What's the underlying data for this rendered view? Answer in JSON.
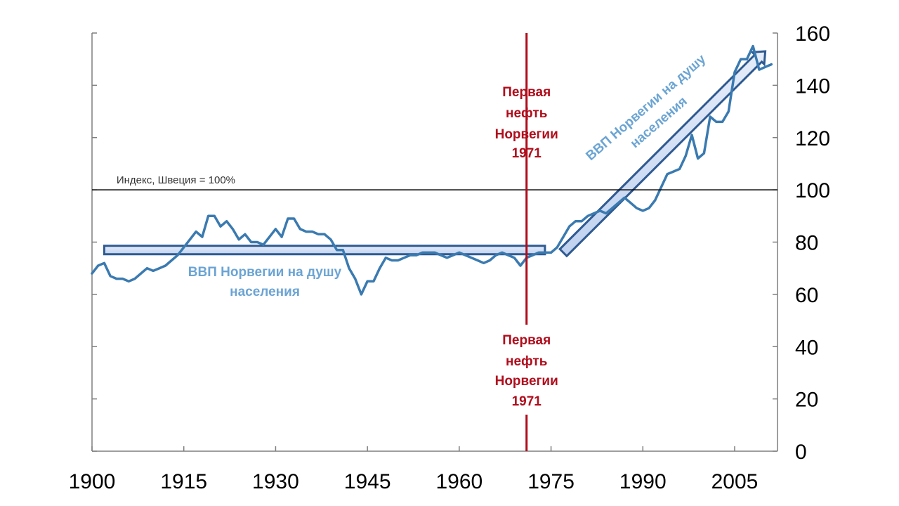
{
  "chart_data": {
    "type": "line",
    "title": "",
    "xlabel": "",
    "ylabel": "",
    "xlim": [
      1900,
      2012
    ],
    "ylim": [
      0,
      160
    ],
    "x_ticks": [
      "1900",
      "1915",
      "1930",
      "1945",
      "1960",
      "1975",
      "1990",
      "2005"
    ],
    "y_ticks": [
      "0",
      "20",
      "40",
      "60",
      "80",
      "100",
      "120",
      "140",
      "160"
    ],
    "grid": false,
    "series": [
      {
        "name": "ВВП Норвегии на душу населения",
        "color": "#3a7ab0",
        "x": [
          1900,
          1901,
          1902,
          1903,
          1904,
          1905,
          1906,
          1907,
          1908,
          1909,
          1910,
          1911,
          1912,
          1913,
          1914,
          1915,
          1916,
          1917,
          1918,
          1919,
          1920,
          1921,
          1922,
          1923,
          1924,
          1925,
          1926,
          1927,
          1928,
          1929,
          1930,
          1931,
          1932,
          1933,
          1934,
          1935,
          1936,
          1937,
          1938,
          1939,
          1940,
          1941,
          1942,
          1943,
          1944,
          1945,
          1946,
          1947,
          1948,
          1949,
          1950,
          1951,
          1952,
          1953,
          1954,
          1955,
          1956,
          1957,
          1958,
          1959,
          1960,
          1961,
          1962,
          1963,
          1964,
          1965,
          1966,
          1967,
          1968,
          1969,
          1970,
          1971,
          1972,
          1973,
          1974,
          1975,
          1976,
          1977,
          1978,
          1979,
          1980,
          1981,
          1982,
          1983,
          1984,
          1985,
          1986,
          1987,
          1988,
          1989,
          1990,
          1991,
          1992,
          1993,
          1994,
          1995,
          1996,
          1997,
          1998,
          1999,
          2000,
          2001,
          2002,
          2003,
          2004,
          2005,
          2006,
          2007,
          2008,
          2009,
          2010,
          2011
        ],
        "values": [
          68,
          71,
          72,
          67,
          66,
          66,
          65,
          66,
          68,
          70,
          69,
          70,
          71,
          73,
          75,
          78,
          81,
          84,
          82,
          90,
          90,
          86,
          88,
          85,
          81,
          83,
          80,
          80,
          79,
          82,
          85,
          82,
          89,
          89,
          85,
          84,
          84,
          83,
          83,
          81,
          77,
          77,
          70,
          66,
          60,
          65,
          65,
          70,
          74,
          73,
          73,
          74,
          75,
          75,
          76,
          76,
          76,
          75,
          74,
          75,
          76,
          75,
          74,
          73,
          72,
          73,
          75,
          76,
          75,
          74,
          71,
          74,
          75,
          76,
          76,
          76,
          78,
          82,
          86,
          88,
          88,
          90,
          91,
          92,
          91,
          93,
          95,
          97,
          95,
          93,
          92,
          93,
          96,
          101,
          106,
          107,
          108,
          113,
          121,
          112,
          114,
          128,
          126,
          126,
          130,
          145,
          150,
          150,
          155,
          146,
          147,
          148
        ]
      }
    ],
    "reference_line": {
      "value": 100,
      "label": "Индекс, Швеция = 100%"
    },
    "vertical_marker": {
      "year": 1971,
      "label_top": [
        "Первая",
        "нефть",
        "Норвегии",
        "1971"
      ],
      "label_bottom": [
        "Первая",
        "нефть",
        "Норвегии",
        "1971"
      ]
    },
    "trend_annotations": {
      "flat": {
        "from": [
          1902,
          77
        ],
        "to": [
          1974,
          77
        ],
        "label": [
          "ВВП Норвегии на душу",
          "населения"
        ]
      },
      "rising": {
        "from": [
          1977,
          76
        ],
        "to": [
          2010,
          153
        ],
        "label": [
          "ВВП Норвегии на душу",
          "населения"
        ]
      }
    }
  },
  "colors": {
    "line": "#3a7ab0",
    "oil": "#b00d1c",
    "band_fill": "#c5d6f2",
    "band_stroke": "#2f5a91",
    "band_text": "#6ba4d3"
  }
}
